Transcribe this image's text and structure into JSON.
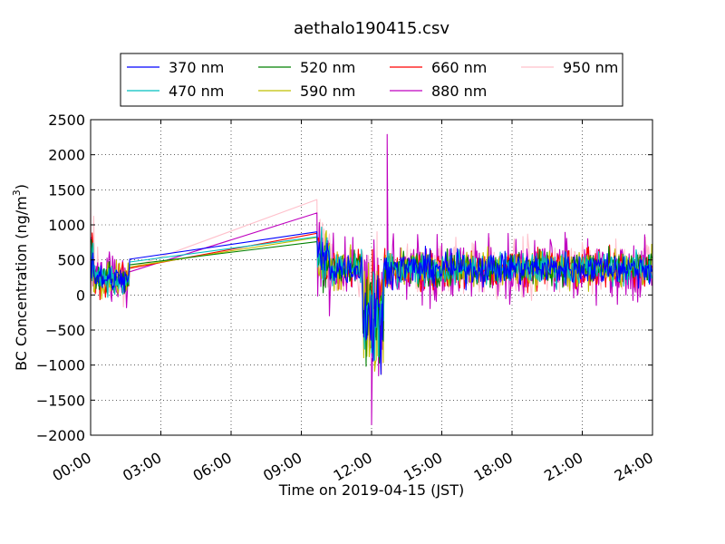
{
  "chart_data": {
    "type": "line",
    "title": "aethalo190415.csv",
    "xlabel": "Time on 2019-04-15 (JST)",
    "ylabel": "BC Concentration (ng/m",
    "ylabel_sup": "3",
    "ylabel_close": ")",
    "xlim": [
      "00:00",
      "24:00"
    ],
    "ylim": [
      -2000,
      2500
    ],
    "grid": true,
    "legend_position": "top",
    "x_ticks": [
      "00:00",
      "03:00",
      "06:00",
      "09:00",
      "12:00",
      "15:00",
      "18:00",
      "21:00",
      "24:00"
    ],
    "y_ticks": [
      "2500",
      "2000",
      "1500",
      "1000",
      "500",
      "0",
      "−500",
      "−1000",
      "−1500",
      "−2000"
    ],
    "series": [
      {
        "name": "370 nm",
        "color": "#0000ff"
      },
      {
        "name": "470 nm",
        "color": "#00bfbf"
      },
      {
        "name": "520 nm",
        "color": "#008000"
      },
      {
        "name": "590 nm",
        "color": "#bfbf00"
      },
      {
        "name": "660 nm",
        "color": "#ff0000"
      },
      {
        "name": "880 nm",
        "color": "#bf00bf"
      },
      {
        "name": "950 nm",
        "color": "#ffc0cb"
      }
    ],
    "gap_segment": {
      "start_time": "01:40",
      "end_time": "09:40",
      "start_values": {
        "370 nm": 510,
        "470 nm": 470,
        "520 nm": 430,
        "590 nm": 400,
        "660 nm": 380,
        "880 nm": 330,
        "950 nm": 380
      },
      "end_values": {
        "370 nm": 900,
        "470 nm": 830,
        "520 nm": 760,
        "590 nm": 820,
        "660 nm": 880,
        "880 nm": 1170,
        "950 nm": 1360
      }
    },
    "annotated_extremes": {
      "880 nm_max": {
        "time": "12:40",
        "value": 2290
      },
      "880 nm_min": {
        "time": "12:00",
        "value": -1850
      }
    }
  }
}
